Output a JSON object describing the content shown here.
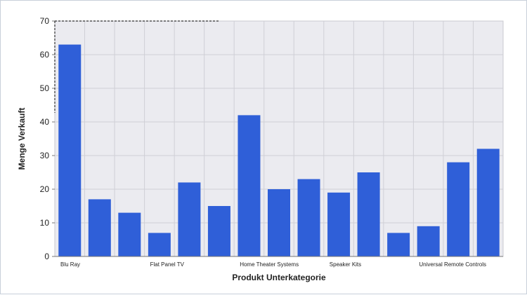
{
  "chart_data": {
    "type": "bar",
    "title": "",
    "xlabel": "Produkt Unterkategorie",
    "ylabel": "Menge Verkauft",
    "ylim": [
      0,
      70
    ],
    "yticks": [
      0,
      10,
      20,
      30,
      40,
      50,
      60,
      70
    ],
    "grid": true,
    "legend": "none",
    "bar_color": "#2f5fd8",
    "plot_background": "#ebebf0",
    "categories": [
      "Blu Ray",
      "",
      "",
      "Flat Panel TV",
      "",
      "",
      "Home Theater Systems",
      "",
      "",
      "Speaker Kits",
      "",
      "",
      "Universal Remote Controls",
      "",
      ""
    ],
    "values": [
      63,
      17,
      13,
      7,
      22,
      15,
      42,
      20,
      23,
      19,
      25,
      7,
      9,
      28,
      32
    ]
  }
}
